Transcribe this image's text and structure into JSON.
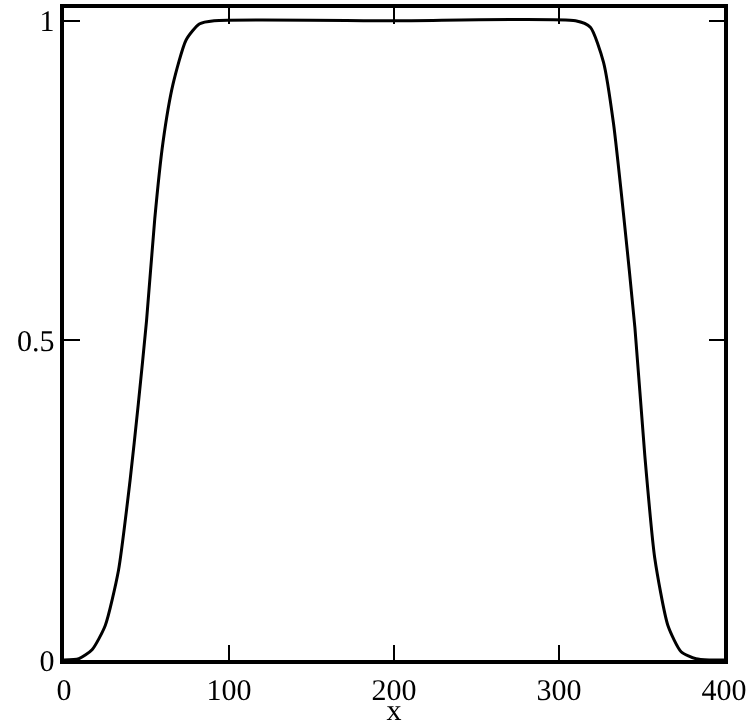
{
  "chart_data": {
    "type": "line",
    "xlabel": "x",
    "x": [
      0,
      9,
      17,
      25,
      33,
      40,
      45,
      50,
      55,
      60,
      66,
      74,
      82,
      91,
      200,
      310,
      319,
      327,
      333,
      339,
      346,
      352,
      358,
      366,
      374,
      383,
      391,
      400
    ],
    "series": [
      {
        "color": "#000000",
        "values": [
          0,
          0.002,
          0.016,
          0.054,
          0.14,
          0.28,
          0.4,
          0.53,
          0.69,
          0.81,
          0.9,
          0.97,
          0.995,
          1,
          1,
          1,
          0.99,
          0.935,
          0.84,
          0.7,
          0.52,
          0.32,
          0.16,
          0.054,
          0.013,
          0.002,
          0,
          0
        ]
      }
    ],
    "xlim": [
      0,
      400
    ],
    "xticks": [
      0,
      100,
      200,
      300,
      400
    ],
    "ylim": [
      0,
      1.02
    ],
    "yticks": [
      0,
      0.5,
      1
    ],
    "grid": false,
    "legend": false,
    "marker": "none",
    "line_style": "solid"
  }
}
